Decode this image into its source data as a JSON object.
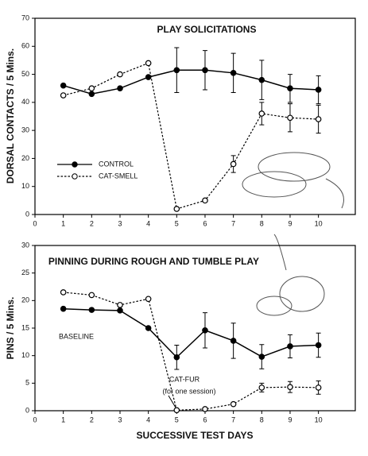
{
  "chart_data": [
    {
      "type": "line",
      "title": "PLAY SOLICITATIONS",
      "ylabel": "DORSAL CONTACTS / 5 Mins.",
      "x": [
        1,
        2,
        3,
        4,
        5,
        6,
        7,
        8,
        9,
        10
      ],
      "xlim": [
        0,
        11.3
      ],
      "xticks": [
        0,
        1,
        2,
        3,
        4,
        5,
        6,
        7,
        8,
        9,
        10
      ],
      "ylim": [
        0,
        70
      ],
      "yticks": [
        0,
        10,
        20,
        30,
        40,
        50,
        60,
        70
      ],
      "legend": "lower left",
      "series": [
        {
          "name": "CONTROL",
          "color": "#000000",
          "marker": "filled",
          "dashed": false,
          "values": [
            46,
            43,
            45,
            49,
            51.5,
            51.5,
            50.5,
            48,
            45,
            44.5
          ],
          "errors": [
            null,
            null,
            null,
            null,
            8,
            7,
            7,
            7,
            5,
            5
          ]
        },
        {
          "name": "CAT-SMELL",
          "color": "#000000",
          "marker": "open",
          "dashed": true,
          "values": [
            42.5,
            45,
            50,
            54,
            2,
            5,
            18,
            36,
            34.5,
            34
          ],
          "errors": [
            null,
            null,
            null,
            null,
            null,
            null,
            3,
            4,
            5,
            5
          ]
        }
      ]
    },
    {
      "type": "line",
      "title": "PINNING DURING ROUGH AND TUMBLE PLAY",
      "ylabel": "PINS / 5 Mins.",
      "xlabel": "SUCCESSIVE TEST DAYS",
      "annotation": "(for one session)",
      "x": [
        1,
        2,
        3,
        4,
        5,
        6,
        7,
        8,
        9,
        10
      ],
      "xlim": [
        0,
        11.3
      ],
      "xticks": [
        0,
        1,
        2,
        3,
        4,
        5,
        6,
        7,
        8,
        9,
        10
      ],
      "ylim": [
        0,
        30
      ],
      "yticks": [
        0,
        5,
        10,
        15,
        20,
        25,
        30
      ],
      "legend": "inline",
      "series": [
        {
          "name": "BASELINE",
          "color": "#000000",
          "marker": "filled",
          "dashed": false,
          "values": [
            18.5,
            18.3,
            18.2,
            15,
            9.7,
            14.6,
            12.7,
            9.8,
            11.7,
            11.9
          ],
          "errors": [
            null,
            null,
            null,
            null,
            2.2,
            3.2,
            3.2,
            2.2,
            2.1,
            2.2
          ]
        },
        {
          "name": "CAT-FUR",
          "color": "#000000",
          "marker": "open",
          "dashed": true,
          "values": [
            21.5,
            21,
            19.2,
            20.3,
            0.1,
            0.3,
            1.2,
            4.2,
            4.3,
            4.2
          ],
          "errors": [
            null,
            null,
            null,
            null,
            null,
            null,
            null,
            0.8,
            1,
            1.2
          ]
        }
      ]
    }
  ]
}
